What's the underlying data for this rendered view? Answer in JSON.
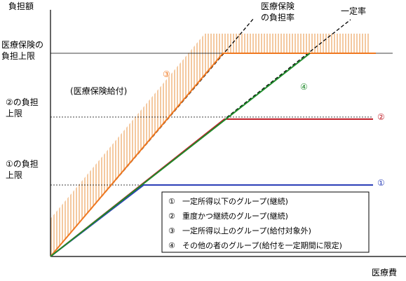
{
  "axis": {
    "y_label": "負担額",
    "x_label": "医療費"
  },
  "y_levels": {
    "insurance_cap": [
      "医療保険の",
      "負担上限"
    ],
    "cap2": [
      "②の負担",
      "上限"
    ],
    "cap1": [
      "①の負担",
      "上限"
    ]
  },
  "top_labels": {
    "insurance_rate": [
      "医療保険",
      "の負担率"
    ],
    "fixed_rate": "一定率"
  },
  "region_label": "(医療保険給付)",
  "markers": {
    "m1": "①",
    "m2": "②",
    "m3": "③",
    "m4": "④"
  },
  "legend": [
    {
      "mark": "①",
      "text": "一定所得以下のグループ(継続)"
    },
    {
      "mark": "②",
      "text": "重度かつ継続のグループ(継続)"
    },
    {
      "mark": "③",
      "text": "一定所得以上のグループ(給付対象外)"
    },
    {
      "mark": "④",
      "text": "その他の者のグループ(給付を一定期間に限定)"
    }
  ],
  "colors": {
    "blue": "#2b3fb8",
    "red": "#c0202a",
    "orange": "#f07820",
    "green": "#1e8a2a",
    "hatch": "#f4c9a0"
  }
}
